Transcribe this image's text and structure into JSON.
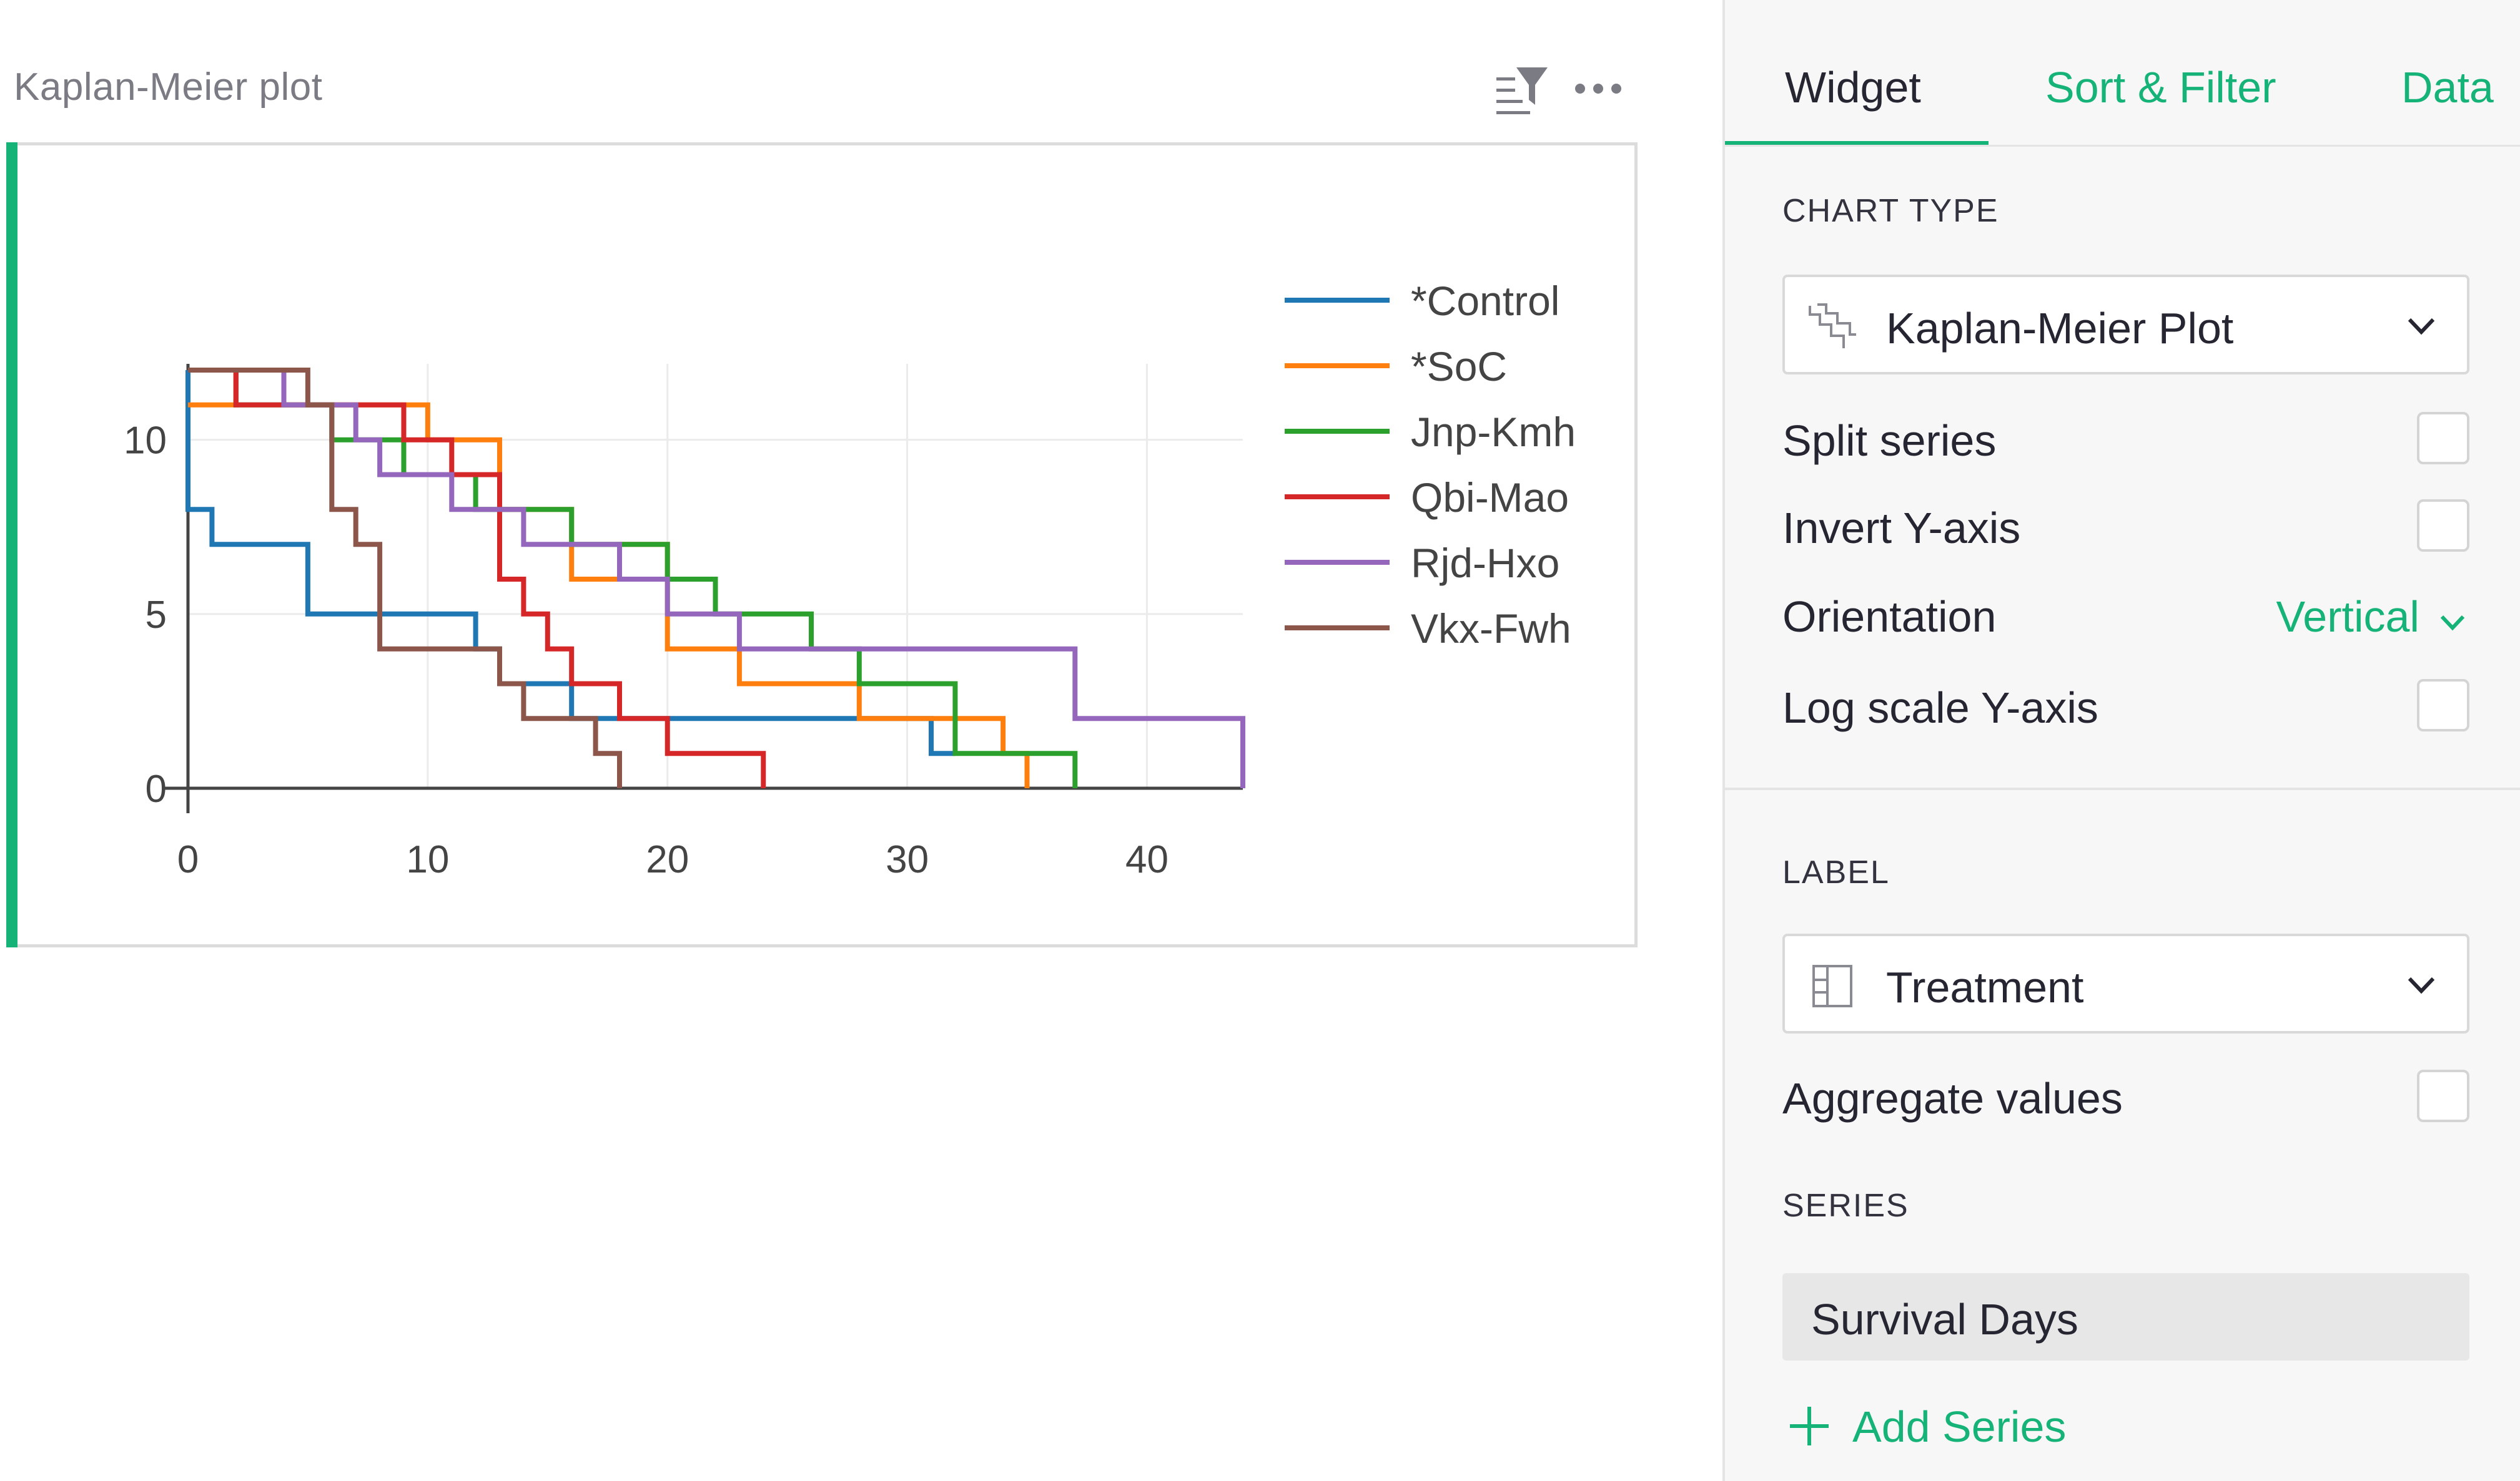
{
  "widget": {
    "title": "Kaplan-Meier plot",
    "filter_icon": "sort-filter-icon",
    "more_icon": "more-horizontal-icon"
  },
  "right_panel": {
    "tabs": [
      {
        "label": "Widget",
        "active": true
      },
      {
        "label": "Sort & Filter",
        "active": false
      },
      {
        "label": "Data",
        "active": false
      }
    ],
    "chart_type_section": "CHART TYPE",
    "chart_type": {
      "value": "Kaplan-Meier Plot",
      "icon": "kaplan-meier-icon"
    },
    "options": {
      "split_series": {
        "label": "Split series",
        "checked": false
      },
      "invert_y": {
        "label": "Invert Y-axis",
        "checked": false
      },
      "orientation": {
        "label": "Orientation",
        "value": "Vertical"
      },
      "log_scale": {
        "label": "Log scale Y-axis",
        "checked": false
      }
    },
    "label_section": "LABEL",
    "label_select": {
      "value": "Treatment",
      "icon": "table-column-icon"
    },
    "aggregate_values": {
      "label": "Aggregate values",
      "checked": false
    },
    "series_section": "SERIES",
    "series_items": [
      "Survival Days"
    ],
    "add_series_label": "Add Series"
  },
  "colors": {
    "accent": "#16b378",
    "Control": "#1f77b4",
    "SoC": "#ff7f0e",
    "Jnp-Kmh": "#2ca02c",
    "Qbi-Mao": "#d62728",
    "Rjd-Hxo": "#9467bd",
    "Vkx-Fwh": "#8c564b"
  },
  "chart_data": {
    "type": "line",
    "step": true,
    "title": "",
    "xlabel": "",
    "ylabel": "",
    "xlim": [
      0,
      44
    ],
    "ylim": [
      0,
      12
    ],
    "x_ticks": [
      0,
      10,
      20,
      30,
      40
    ],
    "y_ticks": [
      0,
      5,
      10
    ],
    "grid": true,
    "legend_position": "right",
    "series": [
      {
        "name": "*Control",
        "color": "#1f77b4",
        "points": [
          [
            0,
            12
          ],
          [
            0,
            8
          ],
          [
            1,
            8
          ],
          [
            1,
            7
          ],
          [
            5,
            7
          ],
          [
            5,
            5
          ],
          [
            12,
            5
          ],
          [
            12,
            4
          ],
          [
            13,
            4
          ],
          [
            13,
            3
          ],
          [
            16,
            3
          ],
          [
            16,
            2
          ],
          [
            31,
            2
          ],
          [
            31,
            1
          ],
          [
            32,
            1
          ]
        ]
      },
      {
        "name": "*SoC",
        "color": "#ff7f0e",
        "points": [
          [
            0,
            11
          ],
          [
            2,
            11
          ],
          [
            2,
            12
          ],
          [
            4,
            12
          ],
          [
            4,
            11
          ],
          [
            10,
            11
          ],
          [
            10,
            10
          ],
          [
            13,
            10
          ],
          [
            13,
            8
          ],
          [
            16,
            8
          ],
          [
            16,
            6
          ],
          [
            18,
            6
          ],
          [
            18,
            7
          ],
          [
            20,
            7
          ],
          [
            20,
            4
          ],
          [
            23,
            4
          ],
          [
            23,
            3
          ],
          [
            28,
            3
          ],
          [
            28,
            2
          ],
          [
            34,
            2
          ],
          [
            34,
            1
          ],
          [
            35,
            1
          ],
          [
            35,
            0
          ]
        ]
      },
      {
        "name": "Jnp-Kmh",
        "color": "#2ca02c",
        "points": [
          [
            0,
            12
          ],
          [
            2,
            12
          ],
          [
            2,
            11
          ],
          [
            6,
            11
          ],
          [
            6,
            10
          ],
          [
            9,
            10
          ],
          [
            9,
            9
          ],
          [
            12,
            9
          ],
          [
            12,
            8
          ],
          [
            16,
            8
          ],
          [
            16,
            7
          ],
          [
            20,
            7
          ],
          [
            20,
            6
          ],
          [
            22,
            6
          ],
          [
            22,
            5
          ],
          [
            26,
            5
          ],
          [
            26,
            4
          ],
          [
            28,
            4
          ],
          [
            28,
            3
          ],
          [
            32,
            3
          ],
          [
            32,
            1
          ],
          [
            37,
            1
          ],
          [
            37,
            0
          ]
        ]
      },
      {
        "name": "Qbi-Mao",
        "color": "#d62728",
        "points": [
          [
            0,
            12
          ],
          [
            2,
            12
          ],
          [
            2,
            11
          ],
          [
            9,
            11
          ],
          [
            9,
            10
          ],
          [
            11,
            10
          ],
          [
            11,
            9
          ],
          [
            13,
            9
          ],
          [
            13,
            6
          ],
          [
            14,
            6
          ],
          [
            14,
            5
          ],
          [
            15,
            5
          ],
          [
            15,
            4
          ],
          [
            16,
            4
          ],
          [
            16,
            3
          ],
          [
            18,
            3
          ],
          [
            18,
            2
          ],
          [
            20,
            2
          ],
          [
            20,
            1
          ],
          [
            24,
            1
          ],
          [
            24,
            0
          ]
        ]
      },
      {
        "name": "Rjd-Hxo",
        "color": "#9467bd",
        "points": [
          [
            0,
            12
          ],
          [
            4,
            12
          ],
          [
            4,
            11
          ],
          [
            7,
            11
          ],
          [
            7,
            10
          ],
          [
            8,
            10
          ],
          [
            8,
            9
          ],
          [
            11,
            9
          ],
          [
            11,
            8
          ],
          [
            14,
            8
          ],
          [
            14,
            7
          ],
          [
            18,
            7
          ],
          [
            18,
            6
          ],
          [
            20,
            6
          ],
          [
            20,
            5
          ],
          [
            23,
            5
          ],
          [
            23,
            4
          ],
          [
            37,
            4
          ],
          [
            37,
            2
          ],
          [
            44,
            2
          ],
          [
            44,
            0
          ]
        ]
      },
      {
        "name": "Vkx-Fwh",
        "color": "#8c564b",
        "points": [
          [
            0,
            12
          ],
          [
            5,
            12
          ],
          [
            5,
            11
          ],
          [
            6,
            11
          ],
          [
            6,
            8
          ],
          [
            7,
            8
          ],
          [
            7,
            7
          ],
          [
            8,
            7
          ],
          [
            8,
            4
          ],
          [
            13,
            4
          ],
          [
            13,
            3
          ],
          [
            14,
            3
          ],
          [
            14,
            2
          ],
          [
            17,
            2
          ],
          [
            17,
            1
          ],
          [
            18,
            1
          ],
          [
            18,
            0
          ]
        ]
      }
    ]
  }
}
